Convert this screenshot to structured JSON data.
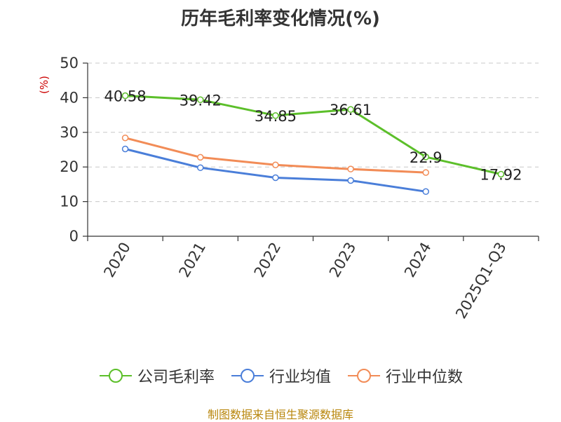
{
  "title": "历年毛利率变化情况(%)",
  "footer": "制图数据来自恒生聚源数据库",
  "chart_data": {
    "type": "line",
    "title": "历年毛利率变化情况(%)",
    "ylabel": "(%)",
    "xlabel": "",
    "categories": [
      "2020",
      "2021",
      "2022",
      "2023",
      "2024",
      "2025Q1-Q3"
    ],
    "ylim": [
      0,
      50
    ],
    "yticks": [
      0,
      10,
      20,
      30,
      40,
      50
    ],
    "grid": "horizontal dashed",
    "legend_position": "bottom",
    "series": [
      {
        "name": "公司毛利率",
        "color": "#5cbf2a",
        "values": [
          40.58,
          39.42,
          34.85,
          36.61,
          22.9,
          17.92
        ],
        "labels": [
          "40.58",
          "39.42",
          "34.85",
          "36.61",
          "22.9",
          "17.92"
        ]
      },
      {
        "name": "行业均值",
        "color": "#4a7ed9",
        "values": [
          25.2,
          19.8,
          16.9,
          16.1,
          12.9,
          null
        ],
        "labels": []
      },
      {
        "name": "行业中位数",
        "color": "#f28c57",
        "values": [
          28.4,
          22.8,
          20.6,
          19.4,
          18.4,
          null
        ],
        "labels": []
      }
    ]
  }
}
